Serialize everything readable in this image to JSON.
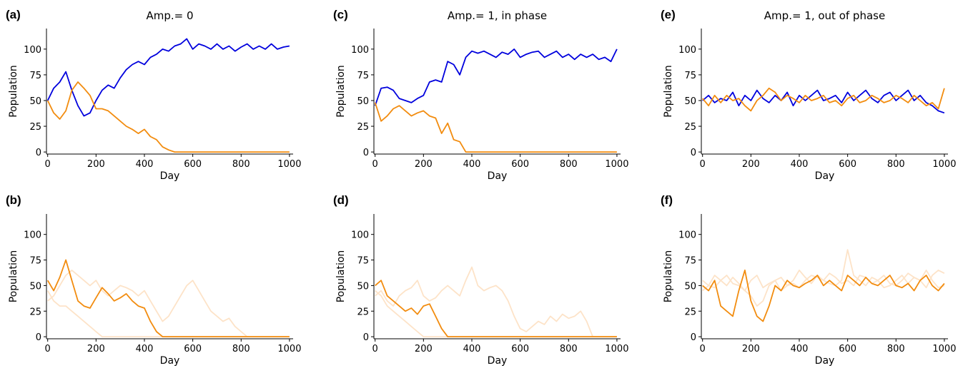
{
  "chart_data": [
    {
      "type": "line",
      "panel_label": "(a)",
      "title": "Amp.= 0",
      "x_label": "Day",
      "y_label": "Population",
      "xlim": [
        -5,
        1015
      ],
      "ylim": [
        -2,
        120
      ],
      "xticks": [
        0,
        200,
        400,
        600,
        800,
        1000
      ],
      "yticks": [
        0,
        25,
        50,
        75,
        100
      ],
      "x": [
        0,
        25,
        50,
        75,
        100,
        125,
        150,
        175,
        200,
        225,
        250,
        275,
        300,
        325,
        350,
        375,
        400,
        425,
        450,
        475,
        500,
        525,
        550,
        575,
        600,
        625,
        650,
        675,
        700,
        725,
        750,
        775,
        800,
        825,
        850,
        875,
        900,
        925,
        950,
        975,
        1000
      ],
      "series": [
        {
          "color": "#0000dd",
          "values": [
            50,
            62,
            68,
            78,
            60,
            45,
            35,
            38,
            50,
            60,
            65,
            62,
            72,
            80,
            85,
            88,
            85,
            92,
            95,
            100,
            98,
            103,
            105,
            110,
            100,
            105,
            103,
            100,
            105,
            100,
            103,
            98,
            102,
            105,
            100,
            103,
            100,
            105,
            100,
            102,
            103
          ]
        },
        {
          "color": "#f28c0f",
          "values": [
            50,
            38,
            32,
            40,
            60,
            68,
            62,
            55,
            42,
            42,
            40,
            35,
            30,
            25,
            22,
            18,
            22,
            15,
            12,
            5,
            2,
            0,
            0,
            0,
            0,
            0,
            0,
            0,
            0,
            0,
            0,
            0,
            0,
            0,
            0,
            0,
            0,
            0,
            0,
            0,
            0
          ]
        }
      ]
    },
    {
      "type": "line",
      "panel_label": "(c)",
      "title": "Amp.= 1, in phase",
      "x_label": "Day",
      "y_label": "Population",
      "xlim": [
        -5,
        1015
      ],
      "ylim": [
        -2,
        120
      ],
      "xticks": [
        0,
        200,
        400,
        600,
        800,
        1000
      ],
      "yticks": [
        0,
        25,
        50,
        75,
        100
      ],
      "x": [
        0,
        25,
        50,
        75,
        100,
        125,
        150,
        175,
        200,
        225,
        250,
        275,
        300,
        325,
        350,
        375,
        400,
        425,
        450,
        475,
        500,
        525,
        550,
        575,
        600,
        625,
        650,
        675,
        700,
        725,
        750,
        775,
        800,
        825,
        850,
        875,
        900,
        925,
        950,
        975,
        1000
      ],
      "series": [
        {
          "color": "#0000dd",
          "values": [
            45,
            62,
            63,
            60,
            52,
            50,
            48,
            52,
            55,
            68,
            70,
            68,
            88,
            85,
            75,
            92,
            98,
            96,
            98,
            95,
            92,
            97,
            95,
            100,
            92,
            95,
            97,
            98,
            92,
            95,
            98,
            92,
            95,
            90,
            95,
            92,
            95,
            90,
            92,
            88,
            100
          ]
        },
        {
          "color": "#f28c0f",
          "values": [
            48,
            30,
            35,
            42,
            45,
            40,
            35,
            38,
            40,
            35,
            33,
            18,
            28,
            12,
            10,
            0,
            0,
            0,
            0,
            0,
            0,
            0,
            0,
            0,
            0,
            0,
            0,
            0,
            0,
            0,
            0,
            0,
            0,
            0,
            0,
            0,
            0,
            0,
            0,
            0,
            0
          ]
        }
      ]
    },
    {
      "type": "line",
      "panel_label": "(e)",
      "title": "Amp.= 1, out of phase",
      "x_label": "Day",
      "y_label": "Population",
      "xlim": [
        -5,
        1015
      ],
      "ylim": [
        -2,
        120
      ],
      "xticks": [
        0,
        200,
        400,
        600,
        800,
        1000
      ],
      "yticks": [
        0,
        25,
        50,
        75,
        100
      ],
      "x": [
        0,
        25,
        50,
        75,
        100,
        125,
        150,
        175,
        200,
        225,
        250,
        275,
        300,
        325,
        350,
        375,
        400,
        425,
        450,
        475,
        500,
        525,
        550,
        575,
        600,
        625,
        650,
        675,
        700,
        725,
        750,
        775,
        800,
        825,
        850,
        875,
        900,
        925,
        950,
        975,
        1000
      ],
      "series": [
        {
          "color": "#0000dd",
          "values": [
            50,
            55,
            48,
            52,
            50,
            58,
            45,
            55,
            50,
            60,
            52,
            48,
            55,
            50,
            58,
            45,
            55,
            50,
            55,
            60,
            50,
            52,
            55,
            48,
            58,
            50,
            55,
            60,
            52,
            48,
            55,
            58,
            50,
            55,
            60,
            50,
            55,
            48,
            45,
            40,
            38
          ]
        },
        {
          "color": "#f28c0f",
          "values": [
            52,
            45,
            55,
            48,
            55,
            50,
            52,
            45,
            40,
            50,
            55,
            62,
            58,
            50,
            55,
            52,
            48,
            55,
            50,
            52,
            55,
            48,
            50,
            45,
            52,
            55,
            48,
            50,
            55,
            52,
            48,
            50,
            55,
            52,
            48,
            55,
            50,
            45,
            48,
            42,
            62
          ]
        }
      ]
    },
    {
      "type": "line",
      "panel_label": "(b)",
      "x_label": "Day",
      "y_label": "Population",
      "xlim": [
        -5,
        1015
      ],
      "ylim": [
        -2,
        120
      ],
      "xticks": [
        0,
        200,
        400,
        600,
        800,
        1000
      ],
      "yticks": [
        0,
        25,
        50,
        75,
        100
      ],
      "x": [
        0,
        25,
        50,
        75,
        100,
        125,
        150,
        175,
        200,
        225,
        250,
        275,
        300,
        325,
        350,
        375,
        400,
        425,
        450,
        475,
        500,
        525,
        550,
        575,
        600,
        625,
        650,
        675,
        700,
        725,
        750,
        775,
        800,
        825,
        850,
        875,
        900,
        925,
        950,
        975,
        1000
      ],
      "series": [
        {
          "color": "#fde3c8",
          "values": [
            35,
            40,
            50,
            60,
            65,
            60,
            55,
            50,
            55,
            45,
            40,
            45,
            50,
            48,
            45,
            40,
            45,
            35,
            25,
            15,
            20,
            30,
            40,
            50,
            55,
            45,
            35,
            25,
            20,
            15,
            18,
            10,
            5,
            0,
            0,
            0,
            0,
            0,
            0,
            0,
            0
          ]
        },
        {
          "color": "#fde3c8",
          "values": [
            45,
            35,
            30,
            30,
            25,
            20,
            15,
            10,
            5,
            0,
            0,
            0,
            0,
            0,
            0,
            0,
            0,
            0,
            0,
            0,
            0,
            0,
            0,
            0,
            0,
            0,
            0,
            0,
            0,
            0,
            0,
            0,
            0,
            0,
            0,
            0,
            0,
            0,
            0,
            0,
            0
          ]
        },
        {
          "color": "#f28c0f",
          "values": [
            55,
            45,
            58,
            75,
            55,
            35,
            30,
            28,
            38,
            48,
            42,
            35,
            38,
            42,
            35,
            30,
            28,
            15,
            5,
            0,
            0,
            0,
            0,
            0,
            0,
            0,
            0,
            0,
            0,
            0,
            0,
            0,
            0,
            0,
            0,
            0,
            0,
            0,
            0,
            0,
            0
          ]
        }
      ]
    },
    {
      "type": "line",
      "panel_label": "(d)",
      "x_label": "Day",
      "y_label": "Population",
      "xlim": [
        -5,
        1015
      ],
      "ylim": [
        -2,
        120
      ],
      "xticks": [
        0,
        200,
        400,
        600,
        800,
        1000
      ],
      "yticks": [
        0,
        25,
        50,
        75,
        100
      ],
      "x": [
        0,
        25,
        50,
        75,
        100,
        125,
        150,
        175,
        200,
        225,
        250,
        275,
        300,
        325,
        350,
        375,
        400,
        425,
        450,
        475,
        500,
        525,
        550,
        575,
        600,
        625,
        650,
        675,
        700,
        725,
        750,
        775,
        800,
        825,
        850,
        875,
        900,
        925,
        950,
        975,
        1000
      ],
      "series": [
        {
          "color": "#fde3c8",
          "values": [
            40,
            45,
            35,
            30,
            40,
            45,
            48,
            55,
            40,
            35,
            38,
            45,
            50,
            45,
            40,
            55,
            68,
            50,
            45,
            48,
            50,
            45,
            35,
            20,
            8,
            5,
            10,
            15,
            12,
            20,
            15,
            22,
            18,
            20,
            25,
            15,
            0,
            0,
            0,
            0,
            0
          ]
        },
        {
          "color": "#fde3c8",
          "values": [
            45,
            40,
            30,
            25,
            20,
            15,
            10,
            5,
            0,
            0,
            0,
            0,
            0,
            0,
            0,
            0,
            0,
            0,
            0,
            0,
            0,
            0,
            0,
            0,
            0,
            0,
            0,
            0,
            0,
            0,
            0,
            0,
            0,
            0,
            0,
            0,
            0,
            0,
            0,
            0,
            0
          ]
        },
        {
          "color": "#f28c0f",
          "values": [
            50,
            55,
            40,
            35,
            30,
            25,
            28,
            22,
            30,
            32,
            20,
            8,
            0,
            0,
            0,
            0,
            0,
            0,
            0,
            0,
            0,
            0,
            0,
            0,
            0,
            0,
            0,
            0,
            0,
            0,
            0,
            0,
            0,
            0,
            0,
            0,
            0,
            0,
            0,
            0,
            0
          ]
        }
      ]
    },
    {
      "type": "line",
      "panel_label": "(f)",
      "x_label": "Day",
      "y_label": "Population",
      "xlim": [
        -5,
        1015
      ],
      "ylim": [
        -2,
        120
      ],
      "xticks": [
        0,
        200,
        400,
        600,
        800,
        1000
      ],
      "yticks": [
        0,
        25,
        50,
        75,
        100
      ],
      "x": [
        0,
        25,
        50,
        75,
        100,
        125,
        150,
        175,
        200,
        225,
        250,
        275,
        300,
        325,
        350,
        375,
        400,
        425,
        450,
        475,
        500,
        525,
        550,
        575,
        600,
        625,
        650,
        675,
        700,
        725,
        750,
        775,
        800,
        825,
        850,
        875,
        900,
        925,
        950,
        975,
        1000
      ],
      "series": [
        {
          "color": "#fde3c8",
          "values": [
            55,
            50,
            60,
            55,
            50,
            58,
            52,
            45,
            55,
            60,
            48,
            52,
            55,
            58,
            50,
            55,
            65,
            58,
            52,
            60,
            55,
            62,
            58,
            52,
            55,
            50,
            60,
            58,
            52,
            55,
            48,
            50,
            55,
            60,
            52,
            58,
            55,
            48,
            60,
            65,
            62
          ]
        },
        {
          "color": "#fde3c8",
          "values": [
            45,
            50,
            48,
            55,
            60,
            52,
            50,
            45,
            40,
            30,
            35,
            50,
            55,
            45,
            50,
            52,
            48,
            55,
            60,
            58,
            55,
            52,
            50,
            55,
            85,
            60,
            55,
            50,
            58,
            55,
            60,
            52,
            50,
            55,
            62,
            58,
            55,
            65,
            55,
            48,
            50
          ]
        },
        {
          "color": "#f28c0f",
          "values": [
            50,
            45,
            55,
            30,
            25,
            20,
            45,
            65,
            35,
            20,
            15,
            30,
            50,
            45,
            55,
            50,
            48,
            52,
            55,
            60,
            50,
            55,
            50,
            45,
            60,
            55,
            50,
            58,
            52,
            50,
            55,
            60,
            50,
            48,
            52,
            45,
            55,
            60,
            50,
            45,
            52
          ]
        }
      ]
    }
  ]
}
